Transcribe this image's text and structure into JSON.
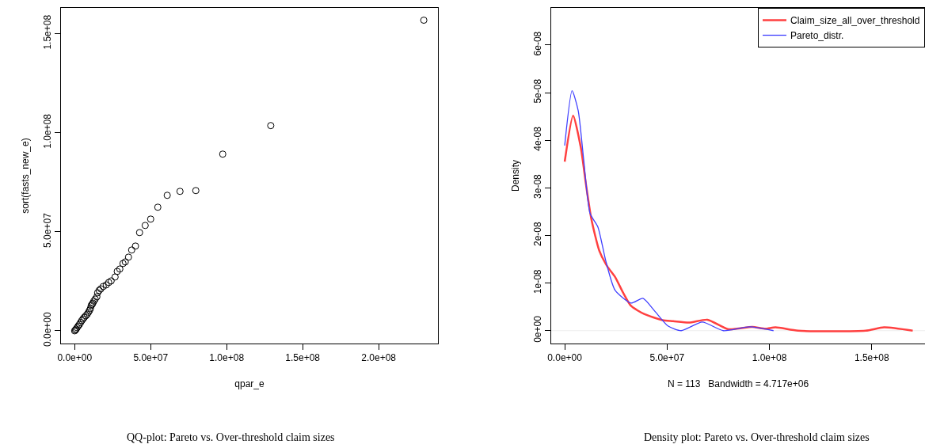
{
  "chart_data": [
    {
      "type": "scatter",
      "title": "QQ-plot: Pareto vs. Over-threshold claim sizes",
      "xlabel": "qpar_e",
      "ylabel": "sort(fasts_new_e)",
      "marker": "circle",
      "grid": false,
      "legend": false,
      "xlim": [
        -9000000,
        239000000
      ],
      "ylim": [
        -6400000,
        163000000
      ],
      "xticks": [
        {
          "value": 0,
          "label": "0.0e+00"
        },
        {
          "value": 50000000,
          "label": "5.0e+07"
        },
        {
          "value": 100000000,
          "label": "1.0e+08"
        },
        {
          "value": 150000000,
          "label": "1.5e+08"
        },
        {
          "value": 200000000,
          "label": "2.0e+08"
        }
      ],
      "yticks": [
        {
          "value": 0,
          "label": "0.0e+00"
        },
        {
          "value": 50000000,
          "label": "5.0e+07"
        },
        {
          "value": 100000000,
          "label": "1.0e+08"
        },
        {
          "value": 150000000,
          "label": "1.5e+08"
        }
      ],
      "series": [
        {
          "color": "#000000",
          "x": [
            0,
            500000,
            1000000,
            1600000,
            2300000,
            3100000,
            3900000,
            4700000,
            5500000,
            6300000,
            7300000,
            8300000,
            9100000,
            9900000,
            10400000,
            10900000,
            11500000,
            12000000,
            12600000,
            13500000,
            14600000,
            15100000,
            16100000,
            17200000,
            18800000,
            20800000,
            22400000,
            24000000,
            26600000,
            28000000,
            29700000,
            31800000,
            33300000,
            35400000,
            37500000,
            40000000,
            42700000,
            46400000,
            50000000,
            54700000,
            60900000,
            69300000,
            79700000,
            97400000,
            129000000,
            229700000
          ],
          "values": [
            0,
            400000,
            900000,
            1600000,
            2400000,
            3200000,
            4200000,
            5200000,
            6000000,
            6800000,
            7600000,
            8400000,
            9400000,
            10400000,
            11400000,
            12800000,
            13400000,
            14000000,
            15000000,
            16000000,
            17200000,
            19200000,
            20400000,
            21200000,
            22400000,
            23200000,
            24400000,
            25200000,
            27200000,
            30000000,
            31200000,
            34000000,
            34800000,
            37200000,
            40800000,
            42800000,
            49600000,
            53200000,
            56400000,
            62400000,
            68400000,
            70400000,
            70800000,
            89200000,
            103600000,
            156800000
          ]
        }
      ]
    },
    {
      "type": "line",
      "title": "Density plot: Pareto vs. Over-threshold claim sizes",
      "xlabel": "N = 113   Bandwidth = 4.717e+06",
      "ylabel": "Density",
      "grid": false,
      "legend": "top right",
      "xlim": [
        -6600000,
        176000000
      ],
      "ylim": [
        -2.7e-09,
        6.78e-08
      ],
      "xticks": [
        {
          "value": 0,
          "label": "0.0e+00"
        },
        {
          "value": 50000000,
          "label": "5.0e+07"
        },
        {
          "value": 100000000,
          "label": "1.0e+08"
        },
        {
          "value": 150000000,
          "label": "1.5e+08"
        }
      ],
      "yticks": [
        {
          "value": 0,
          "label": "0e+00"
        },
        {
          "value": 1e-08,
          "label": "1e-08"
        },
        {
          "value": 2e-08,
          "label": "2e-08"
        },
        {
          "value": 3e-08,
          "label": "3e-08"
        },
        {
          "value": 4e-08,
          "label": "4e-08"
        },
        {
          "value": 5e-08,
          "label": "5e-08"
        },
        {
          "value": 6e-08,
          "label": "6e-08"
        }
      ],
      "ref_lines": [
        {
          "axis": "y",
          "value": 0,
          "color": "#eeeeee"
        }
      ],
      "series": [
        {
          "name": "Claim_size_all_over_threshold",
          "color": "#ff4040",
          "x": [
            0,
            4100000,
            7900000,
            10400000,
            13000000,
            16900000,
            20800000,
            24600000,
            28500000,
            32400000,
            38800000,
            47800000,
            53000000,
            60700000,
            69700000,
            80000000,
            91600000,
            98000000,
            103000000,
            114000000,
            147000000,
            156000000,
            170000000
          ],
          "values": [
            3.55e-08,
            4.52e-08,
            3.84e-08,
            3.07e-08,
            2.35e-08,
            1.68e-08,
            1.35e-08,
            1.13e-08,
            8e-09,
            5.2e-09,
            3.5e-09,
            2.2e-09,
            2e-09,
            1.7e-09,
            2.3e-09,
            3e-10,
            8e-10,
            4e-10,
            7e-10,
            0,
            0,
            7e-10,
            0
          ]
        },
        {
          "name": "Pareto_distr.",
          "color": "#4040ff",
          "x": [
            0,
            3600000,
            6600000,
            9200000,
            12400000,
            16200000,
            20100000,
            24600000,
            32400000,
            38200000,
            44000000,
            50400000,
            56900000,
            67200000,
            77500000,
            90400000,
            102000000
          ],
          "values": [
            3.89e-08,
            5.04e-08,
            4.62e-08,
            3.62e-08,
            2.46e-08,
            2.18e-08,
            1.46e-08,
            8.5e-09,
            5.8e-09,
            6.8e-09,
            4.1e-09,
            1e-09,
            0,
            1.8e-09,
            0,
            8e-10,
            0
          ]
        }
      ]
    }
  ]
}
